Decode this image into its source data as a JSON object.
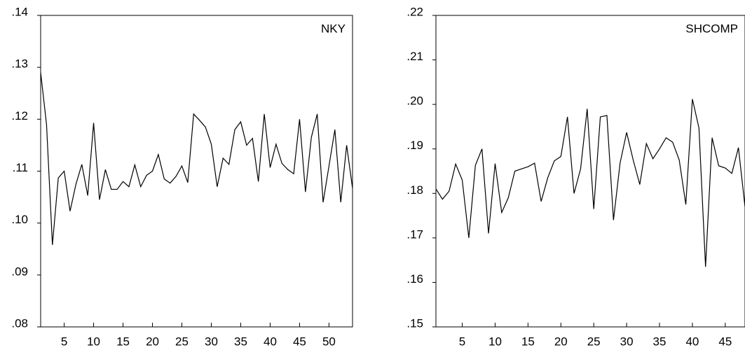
{
  "chart_data": [
    {
      "type": "line",
      "x": [
        1,
        2,
        3,
        4,
        5,
        6,
        7,
        8,
        9,
        10,
        11,
        12,
        13,
        14,
        15,
        16,
        17,
        18,
        19,
        20,
        21,
        22,
        23,
        24,
        25,
        26,
        27,
        28,
        29,
        30,
        31,
        32,
        33,
        34,
        35,
        36,
        37,
        38,
        39,
        40,
        41,
        42,
        43,
        44,
        45,
        46,
        47,
        48,
        49,
        50,
        51,
        52,
        53,
        54
      ],
      "series": [
        {
          "name": "NKY",
          "color": "#000000",
          "values": [
            0.129,
            0.119,
            0.0958,
            0.1087,
            0.11,
            0.1023,
            0.1075,
            0.1113,
            0.1053,
            0.1193,
            0.1045,
            0.1103,
            0.1065,
            0.1065,
            0.108,
            0.107,
            0.1112,
            0.107,
            0.1092,
            0.11,
            0.1132,
            0.1085,
            0.1077,
            0.109,
            0.111,
            0.1078,
            0.121,
            0.1198,
            0.1185,
            0.1152,
            0.107,
            0.1125,
            0.1113,
            0.118,
            0.1195,
            0.115,
            0.1163,
            0.108,
            0.121,
            0.1107,
            0.1152,
            0.1115,
            0.1103,
            0.1095,
            0.12,
            0.106,
            0.1165,
            0.121,
            0.104,
            0.111,
            0.118,
            0.104,
            0.115,
            0.1067
          ]
        }
      ],
      "xlim": [
        1,
        54
      ],
      "xticks": [
        5,
        10,
        15,
        20,
        25,
        30,
        35,
        40,
        45,
        50
      ],
      "ylim": [
        0.08,
        0.14
      ],
      "yticks": [
        {
          "value": 0.08,
          "label": ".08"
        },
        {
          "value": 0.09,
          "label": ".09"
        },
        {
          "value": 0.1,
          "label": ".10"
        },
        {
          "value": 0.11,
          "label": ".11"
        },
        {
          "value": 0.12,
          "label": ".12"
        },
        {
          "value": 0.13,
          "label": ".13"
        },
        {
          "value": 0.14,
          "label": ".14"
        }
      ]
    },
    {
      "type": "line",
      "x": [
        1,
        2,
        3,
        4,
        5,
        6,
        7,
        8,
        9,
        10,
        11,
        12,
        13,
        14,
        15,
        16,
        17,
        18,
        19,
        20,
        21,
        22,
        23,
        24,
        25,
        26,
        27,
        28,
        29,
        30,
        31,
        32,
        33,
        34,
        35,
        36,
        37,
        38,
        39,
        40,
        41,
        42,
        43,
        44,
        45,
        46,
        47,
        48
      ],
      "series": [
        {
          "name": "SHCOMP",
          "color": "#000000",
          "values": [
            0.181,
            0.1787,
            0.1805,
            0.1866,
            0.183,
            0.17,
            0.1863,
            0.19,
            0.171,
            0.1867,
            0.1757,
            0.179,
            0.185,
            0.1855,
            0.186,
            0.1868,
            0.1782,
            0.1835,
            0.1873,
            0.1883,
            0.1972,
            0.18,
            0.1855,
            0.199,
            0.1765,
            0.1972,
            0.1975,
            0.174,
            0.1868,
            0.1937,
            0.1875,
            0.182,
            0.1912,
            0.1878,
            0.19,
            0.1925,
            0.1915,
            0.1875,
            0.1775,
            0.2012,
            0.1947,
            0.1635,
            0.1925,
            0.1862,
            0.1857,
            0.1845,
            0.1903,
            0.177
          ]
        }
      ],
      "xlim": [
        1,
        48
      ],
      "xticks": [
        5,
        10,
        15,
        20,
        25,
        30,
        35,
        40,
        45
      ],
      "ylim": [
        0.15,
        0.22
      ],
      "yticks": [
        {
          "value": 0.15,
          "label": ".15"
        },
        {
          "value": 0.16,
          "label": ".16"
        },
        {
          "value": 0.17,
          "label": ".17"
        },
        {
          "value": 0.18,
          "label": ".18"
        },
        {
          "value": 0.19,
          "label": ".19"
        },
        {
          "value": 0.2,
          "label": ".20"
        },
        {
          "value": 0.21,
          "label": ".21"
        },
        {
          "value": 0.22,
          "label": ".22"
        }
      ]
    }
  ]
}
